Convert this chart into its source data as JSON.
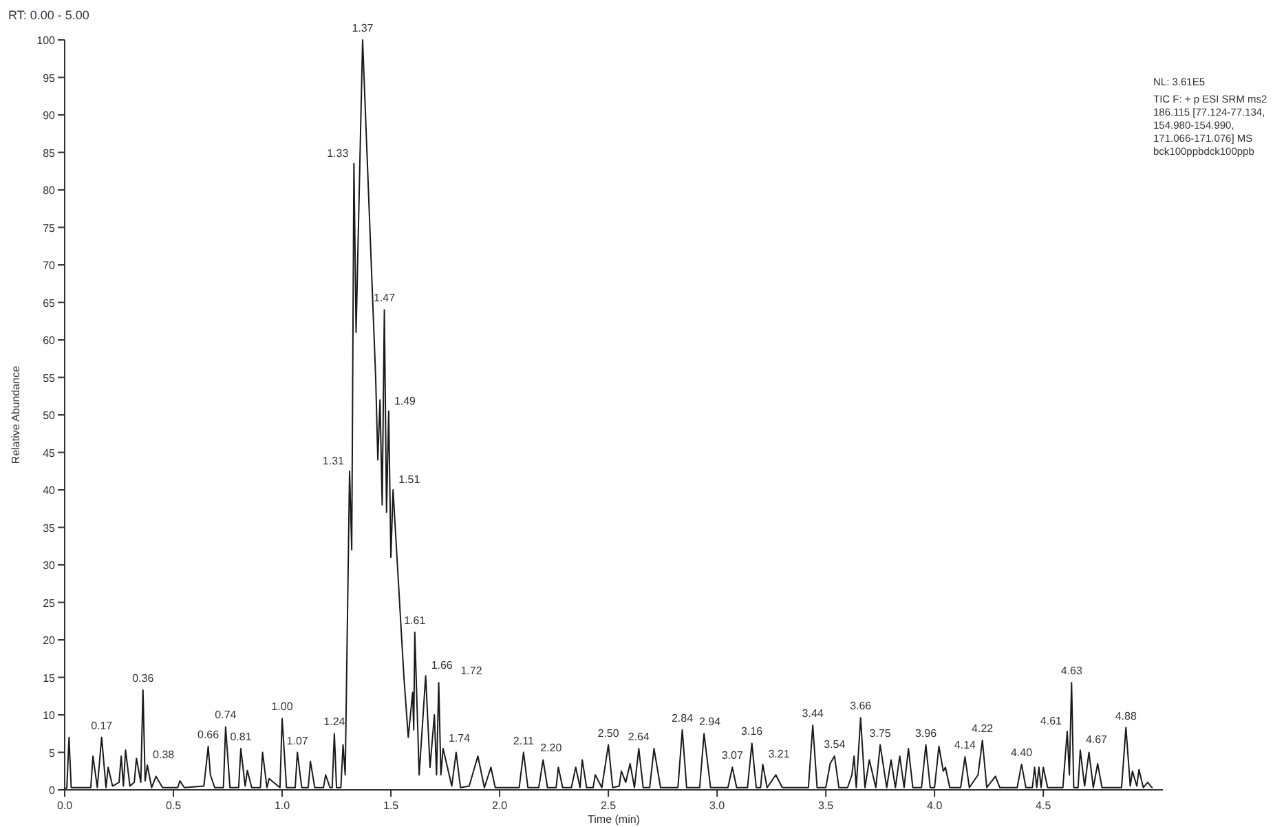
{
  "chart_data": {
    "type": "line",
    "title": "RT: 0.00 - 5.00",
    "xlabel": "Time (min)",
    "ylabel": "Relative Abundance",
    "xlim": [
      0,
      5.05
    ],
    "ylim": [
      0,
      100
    ],
    "xticks": [
      {
        "value": 0,
        "label": "0.0"
      },
      {
        "value": 0.5,
        "label": "0.5"
      },
      {
        "value": 1,
        "label": "1.0"
      },
      {
        "value": 1.5,
        "label": "1.5"
      },
      {
        "value": 2,
        "label": "2.0"
      },
      {
        "value": 2.5,
        "label": "2.5"
      },
      {
        "value": 3,
        "label": "3.0"
      },
      {
        "value": 3.5,
        "label": "3.5"
      },
      {
        "value": 4,
        "label": "4.0"
      },
      {
        "value": 4.5,
        "label": "4.5"
      }
    ],
    "yticks": [
      0,
      5,
      10,
      15,
      20,
      25,
      30,
      35,
      40,
      45,
      50,
      55,
      60,
      65,
      70,
      75,
      80,
      85,
      90,
      95,
      100
    ],
    "grid": false,
    "marker": "none",
    "line_style": "solid",
    "series": [
      {
        "color": "#1a1a1a",
        "x": [
          0,
          0.01,
          0.02,
          0.03,
          0.12,
          0.13,
          0.15,
          0.17,
          0.19,
          0.2,
          0.22,
          0.25,
          0.26,
          0.27,
          0.28,
          0.3,
          0.32,
          0.33,
          0.35,
          0.36,
          0.37,
          0.38,
          0.4,
          0.42,
          0.45,
          0.52,
          0.53,
          0.55,
          0.64,
          0.66,
          0.67,
          0.69,
          0.73,
          0.74,
          0.76,
          0.8,
          0.81,
          0.83,
          0.84,
          0.86,
          0.9,
          0.91,
          0.93,
          0.94,
          0.99,
          1.0,
          1.02,
          1.06,
          1.07,
          1.09,
          1.12,
          1.13,
          1.15,
          1.19,
          1.2,
          1.22,
          1.23,
          1.24,
          1.25,
          1.27,
          1.28,
          1.29,
          1.31,
          1.32,
          1.33,
          1.34,
          1.37,
          1.43,
          1.44,
          1.45,
          1.46,
          1.47,
          1.48,
          1.49,
          1.5,
          1.51,
          1.53,
          1.56,
          1.58,
          1.6,
          1.605,
          1.61,
          1.63,
          1.66,
          1.68,
          1.7,
          1.71,
          1.72,
          1.73,
          1.74,
          1.76,
          1.78,
          1.8,
          1.82,
          1.86,
          1.9,
          1.93,
          1.96,
          1.98,
          2.09,
          2.11,
          2.13,
          2.18,
          2.2,
          2.22,
          2.26,
          2.27,
          2.29,
          2.33,
          2.35,
          2.37,
          2.38,
          2.4,
          2.43,
          2.44,
          2.47,
          2.5,
          2.52,
          2.55,
          2.56,
          2.58,
          2.6,
          2.62,
          2.64,
          2.66,
          2.69,
          2.71,
          2.74,
          2.82,
          2.84,
          2.86,
          2.92,
          2.94,
          2.97,
          3.05,
          3.07,
          3.09,
          3.14,
          3.16,
          3.18,
          3.2,
          3.21,
          3.23,
          3.27,
          3.3,
          3.42,
          3.44,
          3.46,
          3.5,
          3.52,
          3.54,
          3.56,
          3.6,
          3.62,
          3.63,
          3.64,
          3.66,
          3.68,
          3.7,
          3.73,
          3.75,
          3.78,
          3.8,
          3.82,
          3.84,
          3.86,
          3.88,
          3.9,
          3.94,
          3.96,
          3.98,
          4.0,
          4.02,
          4.04,
          4.05,
          4.07,
          4.12,
          4.14,
          4.16,
          4.2,
          4.22,
          4.24,
          4.28,
          4.3,
          4.38,
          4.4,
          4.42,
          4.45,
          4.46,
          4.47,
          4.48,
          4.49,
          4.5,
          4.52,
          4.59,
          4.61,
          4.62,
          4.63,
          4.64,
          4.66,
          4.67,
          4.69,
          4.71,
          4.73,
          4.75,
          4.77,
          4.86,
          4.88,
          4.9,
          4.91,
          4.93,
          4.94,
          4.96,
          4.98,
          5.0
        ],
        "values": [
          0,
          0.3,
          7,
          0.3,
          0.3,
          4.5,
          0.3,
          7,
          0.3,
          3,
          0.5,
          1,
          4.5,
          0.5,
          5.3,
          0.5,
          1,
          4.2,
          1,
          13.3,
          1.2,
          3.3,
          0.3,
          1.8,
          0.3,
          0.3,
          1.2,
          0.3,
          0.5,
          5.8,
          2,
          0.3,
          0.3,
          8.4,
          0.3,
          0.3,
          5.5,
          0.5,
          2.6,
          0.3,
          0.3,
          5,
          0.3,
          1.5,
          0.3,
          9.5,
          0.3,
          0.3,
          5,
          0.3,
          0.3,
          3.8,
          0.3,
          0.3,
          2,
          0.3,
          0.3,
          7.5,
          0.3,
          0.3,
          6,
          2,
          42.5,
          32,
          83.5,
          61,
          100,
          55,
          44,
          52,
          38,
          64,
          37,
          50.5,
          31,
          40,
          30,
          15,
          7,
          13,
          8,
          21,
          2,
          15.2,
          3,
          10,
          2,
          14.3,
          2,
          5.5,
          3,
          0.5,
          5,
          0.3,
          0.5,
          4.5,
          0.3,
          3,
          0.3,
          0.3,
          5,
          0.3,
          0.3,
          4,
          0.3,
          0.3,
          3,
          0.3,
          0.3,
          3,
          0.3,
          4,
          0.3,
          0.3,
          2,
          0.3,
          6,
          0.3,
          0.5,
          2.5,
          1,
          3.5,
          0.3,
          5.5,
          0.3,
          0.3,
          5.5,
          0.3,
          0.3,
          8,
          0.3,
          0.3,
          7.5,
          0.3,
          0.3,
          3,
          0.3,
          0.3,
          6.2,
          0.3,
          0.3,
          3.4,
          0.3,
          2,
          0.3,
          0.3,
          8.6,
          0.3,
          0.3,
          3.5,
          4.5,
          0.3,
          0.3,
          2,
          4.5,
          0.3,
          9.6,
          0.3,
          4,
          0.3,
          6,
          0.3,
          4,
          0.3,
          4.5,
          0.3,
          5.5,
          0.3,
          0.3,
          6,
          0.3,
          0.3,
          5.8,
          2.5,
          3,
          0.3,
          0.3,
          4.4,
          0.3,
          2,
          6.6,
          0.3,
          1.8,
          0.3,
          0.3,
          3.4,
          0.3,
          0.3,
          3,
          0.3,
          3,
          0.3,
          3,
          0.3,
          0.3,
          7.8,
          2,
          14.3,
          0.3,
          0.3,
          5.3,
          0.5,
          5,
          0.3,
          3.5,
          0.3,
          0.3,
          8.3,
          0.5,
          2.5,
          0.5,
          2.7,
          0.3,
          1,
          0.3
        ]
      }
    ],
    "annotations": [
      "NL: 3.61E5",
      "TIC F: + p ESI SRM ms2",
      "186.115 [77.124-77.134,",
      "154.980-154.990,",
      "171.066-171.076]  MS",
      "bck100ppbdck100ppb",
      {
        "text": "0.17",
        "x": 0.17,
        "y": 7
      },
      {
        "text": "0.36",
        "x": 0.36,
        "y": 13.3
      },
      {
        "text": "0.38",
        "x": 0.38,
        "y": 3.3
      },
      {
        "text": "0.66",
        "x": 0.66,
        "y": 5.8
      },
      {
        "text": "0.74",
        "x": 0.74,
        "y": 8.4
      },
      {
        "text": "0.81",
        "x": 0.81,
        "y": 5.5
      },
      {
        "text": "1.00",
        "x": 1.0,
        "y": 9.5
      },
      {
        "text": "1.07",
        "x": 1.07,
        "y": 5
      },
      {
        "text": "1.24",
        "x": 1.24,
        "y": 7.5
      },
      {
        "text": "1.31",
        "x": 1.31,
        "y": 42.5
      },
      {
        "text": "1.33",
        "x": 1.33,
        "y": 83.5
      },
      {
        "text": "1.37",
        "x": 1.37,
        "y": 100
      },
      {
        "text": "1.47",
        "x": 1.47,
        "y": 64
      },
      {
        "text": "1.49",
        "x": 1.49,
        "y": 50.5
      },
      {
        "text": "1.51",
        "x": 1.51,
        "y": 40
      },
      {
        "text": "1.61",
        "x": 1.61,
        "y": 21
      },
      {
        "text": "1.66",
        "x": 1.66,
        "y": 15.2
      },
      {
        "text": "1.72",
        "x": 1.72,
        "y": 14.3
      },
      {
        "text": "1.74",
        "x": 1.74,
        "y": 5.5
      },
      {
        "text": "2.11",
        "x": 2.11,
        "y": 5
      },
      {
        "text": "2.20",
        "x": 2.2,
        "y": 4
      },
      {
        "text": "2.50",
        "x": 2.5,
        "y": 6
      },
      {
        "text": "2.64",
        "x": 2.64,
        "y": 5.5
      },
      {
        "text": "2.84",
        "x": 2.84,
        "y": 8
      },
      {
        "text": "2.94",
        "x": 2.94,
        "y": 7.5
      },
      {
        "text": "3.07",
        "x": 3.07,
        "y": 3
      },
      {
        "text": "3.16",
        "x": 3.16,
        "y": 6.2
      },
      {
        "text": "3.21",
        "x": 3.21,
        "y": 3.4
      },
      {
        "text": "3.44",
        "x": 3.44,
        "y": 8.6
      },
      {
        "text": "3.54",
        "x": 3.54,
        "y": 4.5
      },
      {
        "text": "3.66",
        "x": 3.66,
        "y": 9.6
      },
      {
        "text": "3.75",
        "x": 3.75,
        "y": 6
      },
      {
        "text": "3.96",
        "x": 3.96,
        "y": 6
      },
      {
        "text": "4.14",
        "x": 4.14,
        "y": 4.4
      },
      {
        "text": "4.22",
        "x": 4.22,
        "y": 6.6
      },
      {
        "text": "4.40",
        "x": 4.4,
        "y": 3.4
      },
      {
        "text": "4.61",
        "x": 4.61,
        "y": 7.8
      },
      {
        "text": "4.63",
        "x": 4.63,
        "y": 14.3
      },
      {
        "text": "4.67",
        "x": 4.67,
        "y": 5.3
      },
      {
        "text": "4.88",
        "x": 4.88,
        "y": 8.3
      }
    ]
  }
}
